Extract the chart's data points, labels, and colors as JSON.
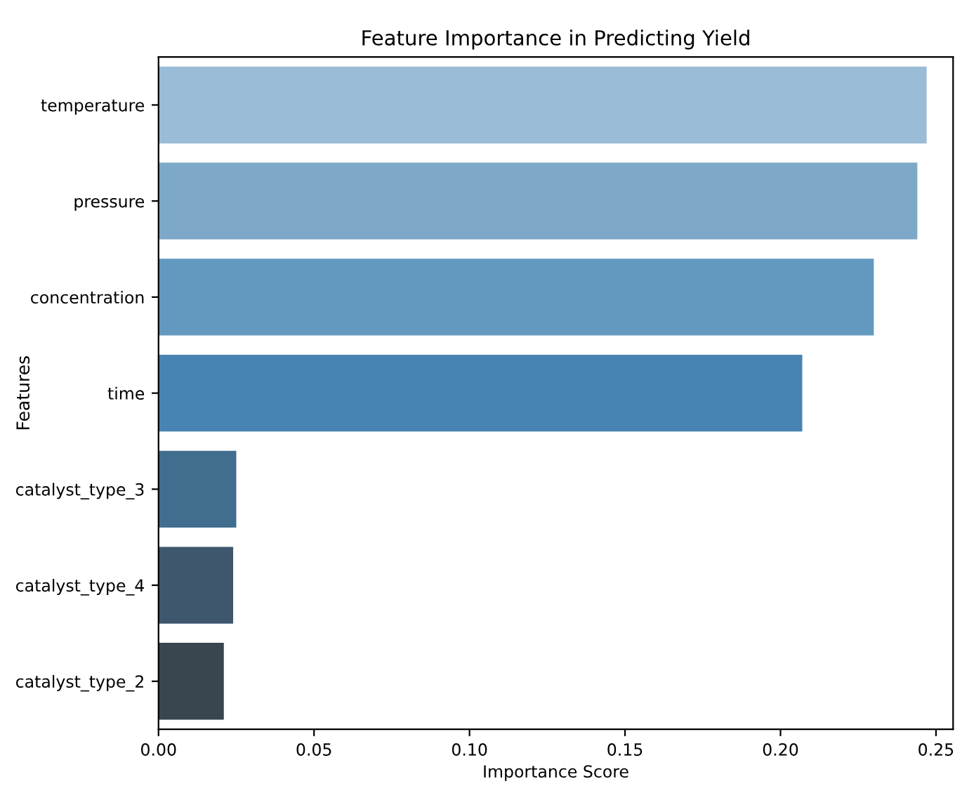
{
  "chart_data": {
    "type": "bar",
    "orientation": "horizontal",
    "title": "Feature Importance in Predicting Yield",
    "xlabel": "Importance Score",
    "ylabel": "Features",
    "categories": [
      "temperature",
      "pressure",
      "concentration",
      "time",
      "catalyst_type_3",
      "catalyst_type_4",
      "catalyst_type_2"
    ],
    "values": [
      0.247,
      0.244,
      0.23,
      0.207,
      0.025,
      0.024,
      0.021
    ],
    "colors": [
      "#9abcd7",
      "#7da8c8",
      "#6398bf",
      "#4784b3",
      "#416d8f",
      "#3e576d",
      "#39464f"
    ],
    "xlim": [
      0,
      0.2555
    ],
    "xticks": [
      {
        "value": 0,
        "label": "0.00"
      },
      {
        "value": 0.05,
        "label": "0.05"
      },
      {
        "value": 0.1,
        "label": "0.10"
      },
      {
        "value": 0.15,
        "label": "0.15"
      },
      {
        "value": 0.2,
        "label": "0.20"
      },
      {
        "value": 0.25,
        "label": "0.25"
      }
    ],
    "grid": false
  }
}
